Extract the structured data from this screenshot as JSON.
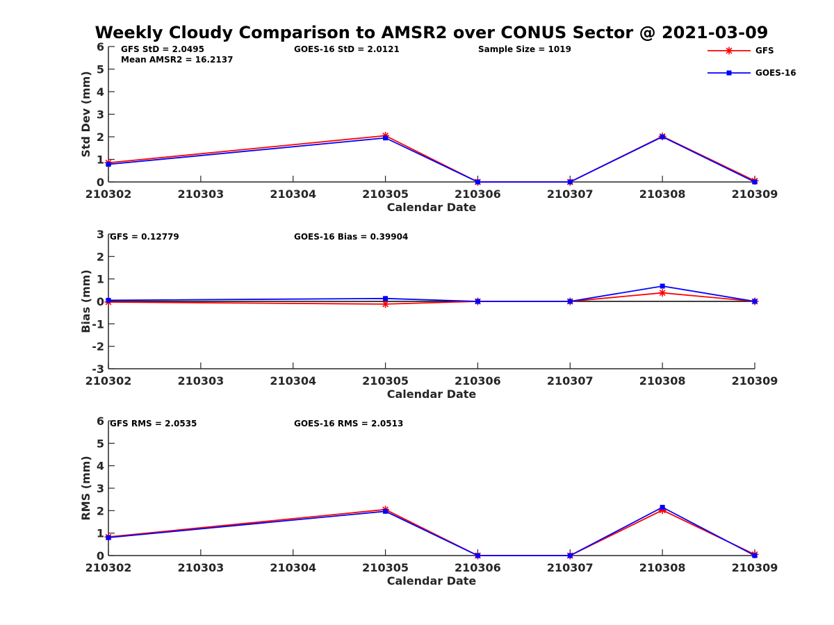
{
  "title": "Weekly Cloudy Comparison to AMSR2 over CONUS Sector @ 2021-03-09",
  "legend": [
    {
      "name": "GFS",
      "color": "#ff0000",
      "marker": "star"
    },
    {
      "name": "GOES-16",
      "color": "#0000ff",
      "marker": "square"
    }
  ],
  "chart_data": [
    {
      "type": "line",
      "xlabel": "Calendar Date",
      "ylabel": "Std Dev (mm)",
      "x": [
        "210302",
        "210303",
        "210304",
        "210305",
        "210306",
        "210307",
        "210308",
        "210309"
      ],
      "yticks": [
        "0",
        "1",
        "2",
        "3",
        "4",
        "5",
        "6"
      ],
      "ylim": [
        0,
        6
      ],
      "series": [
        {
          "name": "GFS",
          "color": "#ff0000",
          "marker": "star",
          "values": [
            0.85,
            null,
            null,
            2.05,
            0.0,
            0.0,
            2.02,
            0.05
          ]
        },
        {
          "name": "GOES-16",
          "color": "#0000ff",
          "marker": "square",
          "values": [
            0.78,
            null,
            null,
            1.95,
            0.0,
            0.0,
            2.0,
            0.0
          ]
        }
      ],
      "annotations": [
        "GFS StD = 2.0495",
        "Mean AMSR2 = 16.2137",
        "GOES-16 StD = 2.0121",
        "Sample Size = 1019"
      ],
      "zero_line": false
    },
    {
      "type": "line",
      "xlabel": "Calendar Date",
      "ylabel": "Bias (mm)",
      "x": [
        "210302",
        "210303",
        "210304",
        "210305",
        "210306",
        "210307",
        "210308",
        "210309"
      ],
      "yticks": [
        "-3",
        "-2",
        "-1",
        "0",
        "1",
        "2",
        "3"
      ],
      "ylim": [
        -3,
        3
      ],
      "series": [
        {
          "name": "GFS",
          "color": "#ff0000",
          "marker": "star",
          "values": [
            -0.03,
            null,
            null,
            -0.12,
            0.0,
            0.0,
            0.38,
            0.0
          ]
        },
        {
          "name": "GOES-16",
          "color": "#0000ff",
          "marker": "square",
          "values": [
            0.05,
            null,
            null,
            0.13,
            0.0,
            0.0,
            0.68,
            0.0
          ]
        }
      ],
      "annotations": [
        "GFS = 0.12779",
        "GOES-16 Bias  = 0.39904"
      ],
      "zero_line": true
    },
    {
      "type": "line",
      "xlabel": "Calendar Date",
      "ylabel": "RMS (mm)",
      "x": [
        "210302",
        "210303",
        "210304",
        "210305",
        "210306",
        "210307",
        "210308",
        "210309"
      ],
      "yticks": [
        "0",
        "1",
        "2",
        "3",
        "4",
        "5",
        "6"
      ],
      "ylim": [
        0,
        6
      ],
      "series": [
        {
          "name": "GFS",
          "color": "#ff0000",
          "marker": "star",
          "values": [
            0.83,
            null,
            null,
            2.05,
            0.0,
            0.0,
            2.02,
            0.05
          ]
        },
        {
          "name": "GOES-16",
          "color": "#0000ff",
          "marker": "square",
          "values": [
            0.8,
            null,
            null,
            1.97,
            0.0,
            0.0,
            2.15,
            0.0
          ]
        }
      ],
      "annotations": [
        "GFS RMS = 2.0535",
        "GOES-16 RMS = 2.0513"
      ],
      "zero_line": false
    }
  ]
}
